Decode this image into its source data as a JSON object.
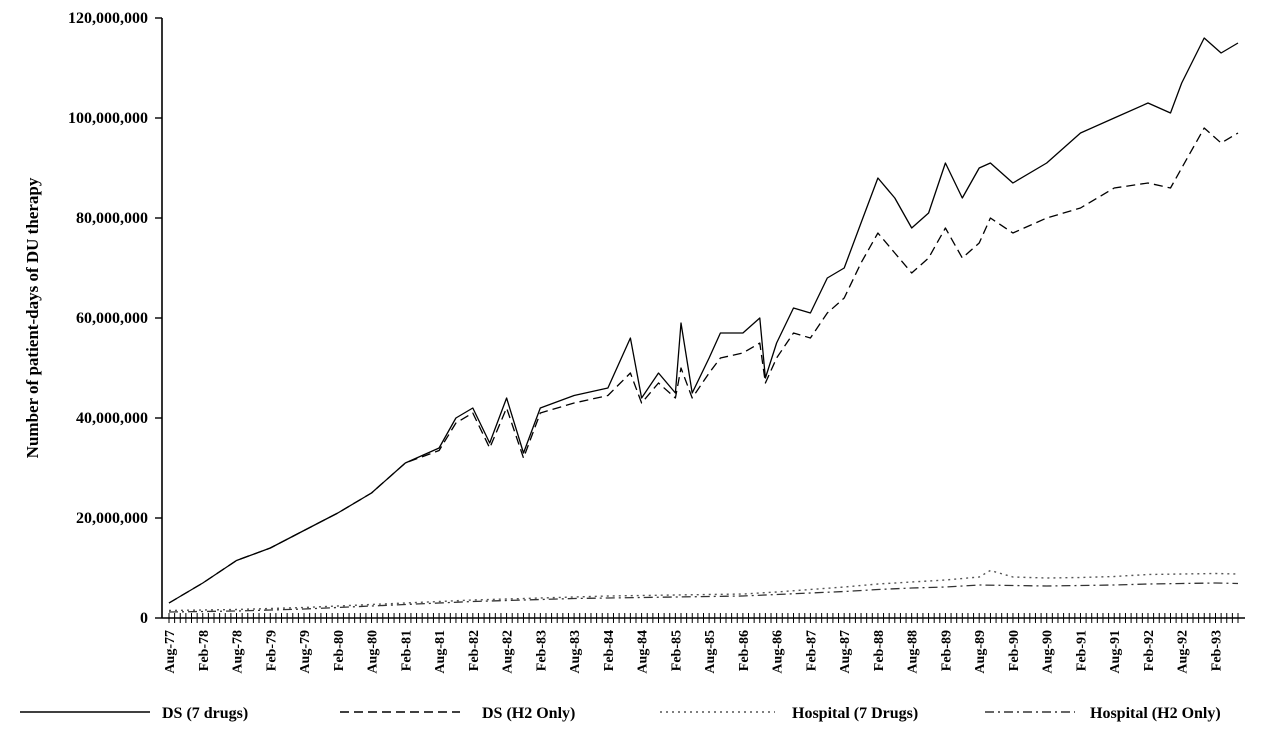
{
  "chart_data": {
    "type": "line",
    "title": "",
    "ylabel": "Number of patient-days of DU therapy",
    "xlabel": "",
    "ylim": [
      0,
      120000000
    ],
    "yticks": [
      0,
      20000000,
      40000000,
      60000000,
      80000000,
      100000000,
      120000000
    ],
    "ytick_labels": [
      "0",
      "20,000,000",
      "40,000,000",
      "60,000,000",
      "80,000,000",
      "100,000,000",
      "120,000,000"
    ],
    "x_start": "Aug-77",
    "x_end": "Jun-93",
    "x_tick_labels": [
      "Aug-77",
      "Feb-78",
      "Aug-78",
      "Feb-79",
      "Aug-79",
      "Feb-80",
      "Aug-80",
      "Feb-81",
      "Aug-81",
      "Feb-82",
      "Aug-82",
      "Feb-83",
      "Aug-83",
      "Feb-84",
      "Aug-84",
      "Feb-85",
      "Aug-85",
      "Feb-86",
      "Aug-86",
      "Feb-87",
      "Aug-87",
      "Feb-88",
      "Aug-88",
      "Feb-89",
      "Aug-89",
      "Feb-90",
      "Aug-90",
      "Feb-91",
      "Aug-91",
      "Feb-92",
      "Aug-92",
      "Feb-93"
    ],
    "legend_position": "bottom",
    "grid": false,
    "series": [
      {
        "name": "DS (7 drugs)",
        "style": "solid",
        "color": "#000000",
        "points": [
          [
            "Aug-77",
            3000000
          ],
          [
            "Feb-78",
            7000000
          ],
          [
            "Aug-78",
            11500000
          ],
          [
            "Feb-79",
            14000000
          ],
          [
            "Aug-79",
            17500000
          ],
          [
            "Feb-80",
            21000000
          ],
          [
            "Aug-80",
            25000000
          ],
          [
            "Feb-81",
            31000000
          ],
          [
            "Aug-81",
            34000000
          ],
          [
            "Nov-81",
            40000000
          ],
          [
            "Feb-82",
            42000000
          ],
          [
            "May-82",
            35000000
          ],
          [
            "Aug-82",
            44000000
          ],
          [
            "Nov-82",
            33000000
          ],
          [
            "Feb-83",
            42000000
          ],
          [
            "Aug-83",
            44500000
          ],
          [
            "Feb-84",
            46000000
          ],
          [
            "Jun-84",
            56000000
          ],
          [
            "Aug-84",
            44000000
          ],
          [
            "Nov-84",
            49000000
          ],
          [
            "Feb-85",
            45000000
          ],
          [
            "Mar-85",
            59000000
          ],
          [
            "May-85",
            45000000
          ],
          [
            "Aug-85",
            52000000
          ],
          [
            "Oct-85",
            57000000
          ],
          [
            "Feb-86",
            57000000
          ],
          [
            "May-86",
            60000000
          ],
          [
            "Jun-86",
            48000000
          ],
          [
            "Aug-86",
            55000000
          ],
          [
            "Nov-86",
            62000000
          ],
          [
            "Feb-87",
            61000000
          ],
          [
            "May-87",
            68000000
          ],
          [
            "Aug-87",
            70000000
          ],
          [
            "Nov-87",
            79000000
          ],
          [
            "Feb-88",
            88000000
          ],
          [
            "May-88",
            84000000
          ],
          [
            "Aug-88",
            78000000
          ],
          [
            "Nov-88",
            81000000
          ],
          [
            "Feb-89",
            91000000
          ],
          [
            "May-89",
            84000000
          ],
          [
            "Aug-89",
            90000000
          ],
          [
            "Oct-89",
            91000000
          ],
          [
            "Feb-90",
            87000000
          ],
          [
            "Aug-90",
            91000000
          ],
          [
            "Feb-91",
            97000000
          ],
          [
            "Aug-91",
            100000000
          ],
          [
            "Feb-92",
            103000000
          ],
          [
            "Jun-92",
            101000000
          ],
          [
            "Aug-92",
            107000000
          ],
          [
            "Dec-92",
            116000000
          ],
          [
            "Mar-93",
            113000000
          ],
          [
            "Jun-93",
            115000000
          ]
        ]
      },
      {
        "name": "DS (H2 Only)",
        "style": "dashed",
        "color": "#000000",
        "points": [
          [
            "Aug-77",
            3000000
          ],
          [
            "Feb-78",
            7000000
          ],
          [
            "Aug-78",
            11500000
          ],
          [
            "Feb-79",
            14000000
          ],
          [
            "Aug-79",
            17500000
          ],
          [
            "Feb-80",
            21000000
          ],
          [
            "Aug-80",
            25000000
          ],
          [
            "Feb-81",
            31000000
          ],
          [
            "Aug-81",
            33500000
          ],
          [
            "Nov-81",
            39000000
          ],
          [
            "Feb-82",
            41000000
          ],
          [
            "May-82",
            34000000
          ],
          [
            "Aug-82",
            42000000
          ],
          [
            "Nov-82",
            32000000
          ],
          [
            "Feb-83",
            41000000
          ],
          [
            "Aug-83",
            43000000
          ],
          [
            "Feb-84",
            44500000
          ],
          [
            "Jun-84",
            49000000
          ],
          [
            "Aug-84",
            43000000
          ],
          [
            "Nov-84",
            47000000
          ],
          [
            "Feb-85",
            44000000
          ],
          [
            "Mar-85",
            50000000
          ],
          [
            "May-85",
            44000000
          ],
          [
            "Aug-85",
            49000000
          ],
          [
            "Oct-85",
            52000000
          ],
          [
            "Feb-86",
            53000000
          ],
          [
            "May-86",
            55000000
          ],
          [
            "Jun-86",
            47000000
          ],
          [
            "Aug-86",
            52000000
          ],
          [
            "Nov-86",
            57000000
          ],
          [
            "Feb-87",
            56000000
          ],
          [
            "May-87",
            61000000
          ],
          [
            "Aug-87",
            64000000
          ],
          [
            "Nov-87",
            71000000
          ],
          [
            "Feb-88",
            77000000
          ],
          [
            "May-88",
            73000000
          ],
          [
            "Aug-88",
            69000000
          ],
          [
            "Nov-88",
            72000000
          ],
          [
            "Feb-89",
            78000000
          ],
          [
            "May-89",
            72000000
          ],
          [
            "Aug-89",
            75000000
          ],
          [
            "Oct-89",
            80000000
          ],
          [
            "Feb-90",
            77000000
          ],
          [
            "Aug-90",
            80000000
          ],
          [
            "Feb-91",
            82000000
          ],
          [
            "Aug-91",
            86000000
          ],
          [
            "Feb-92",
            87000000
          ],
          [
            "Jun-92",
            86000000
          ],
          [
            "Aug-92",
            90000000
          ],
          [
            "Dec-92",
            98000000
          ],
          [
            "Mar-93",
            95000000
          ],
          [
            "Jun-93",
            97000000
          ]
        ]
      },
      {
        "name": "Hospital (7 Drugs)",
        "style": "dotted",
        "color": "#555555",
        "points": [
          [
            "Aug-77",
            1500000
          ],
          [
            "Feb-78",
            1600000
          ],
          [
            "Aug-78",
            1700000
          ],
          [
            "Feb-79",
            1900000
          ],
          [
            "Aug-79",
            2100000
          ],
          [
            "Feb-80",
            2400000
          ],
          [
            "Aug-80",
            2700000
          ],
          [
            "Feb-81",
            3000000
          ],
          [
            "Aug-81",
            3300000
          ],
          [
            "Feb-82",
            3600000
          ],
          [
            "Aug-82",
            3800000
          ],
          [
            "Feb-83",
            4000000
          ],
          [
            "Aug-83",
            4200000
          ],
          [
            "Feb-84",
            4400000
          ],
          [
            "Aug-84",
            4500000
          ],
          [
            "Feb-85",
            4600000
          ],
          [
            "Aug-85",
            4700000
          ],
          [
            "Feb-86",
            4800000
          ],
          [
            "Aug-86",
            5200000
          ],
          [
            "Feb-87",
            5700000
          ],
          [
            "Aug-87",
            6200000
          ],
          [
            "Feb-88",
            6800000
          ],
          [
            "Aug-88",
            7200000
          ],
          [
            "Feb-89",
            7600000
          ],
          [
            "Aug-89",
            8200000
          ],
          [
            "Oct-89",
            9500000
          ],
          [
            "Feb-90",
            8200000
          ],
          [
            "Aug-90",
            8000000
          ],
          [
            "Feb-91",
            8100000
          ],
          [
            "Aug-91",
            8300000
          ],
          [
            "Feb-92",
            8700000
          ],
          [
            "Aug-92",
            8800000
          ],
          [
            "Feb-93",
            8900000
          ],
          [
            "Jun-93",
            8800000
          ]
        ]
      },
      {
        "name": "Hospital (H2  Only)",
        "style": "dashdot",
        "color": "#333333",
        "points": [
          [
            "Aug-77",
            1200000
          ],
          [
            "Feb-78",
            1300000
          ],
          [
            "Aug-78",
            1400000
          ],
          [
            "Feb-79",
            1600000
          ],
          [
            "Aug-79",
            1800000
          ],
          [
            "Feb-80",
            2100000
          ],
          [
            "Aug-80",
            2400000
          ],
          [
            "Feb-81",
            2700000
          ],
          [
            "Aug-81",
            3000000
          ],
          [
            "Feb-82",
            3300000
          ],
          [
            "Aug-82",
            3500000
          ],
          [
            "Feb-83",
            3700000
          ],
          [
            "Aug-83",
            3900000
          ],
          [
            "Feb-84",
            4000000
          ],
          [
            "Aug-84",
            4100000
          ],
          [
            "Feb-85",
            4200000
          ],
          [
            "Aug-85",
            4300000
          ],
          [
            "Feb-86",
            4400000
          ],
          [
            "Aug-86",
            4700000
          ],
          [
            "Feb-87",
            5000000
          ],
          [
            "Aug-87",
            5300000
          ],
          [
            "Feb-88",
            5700000
          ],
          [
            "Aug-88",
            6000000
          ],
          [
            "Feb-89",
            6200000
          ],
          [
            "Aug-89",
            6600000
          ],
          [
            "Feb-90",
            6500000
          ],
          [
            "Aug-90",
            6400000
          ],
          [
            "Feb-91",
            6500000
          ],
          [
            "Aug-91",
            6600000
          ],
          [
            "Feb-92",
            6800000
          ],
          [
            "Aug-92",
            6900000
          ],
          [
            "Feb-93",
            7000000
          ],
          [
            "Jun-93",
            6900000
          ]
        ]
      }
    ]
  }
}
